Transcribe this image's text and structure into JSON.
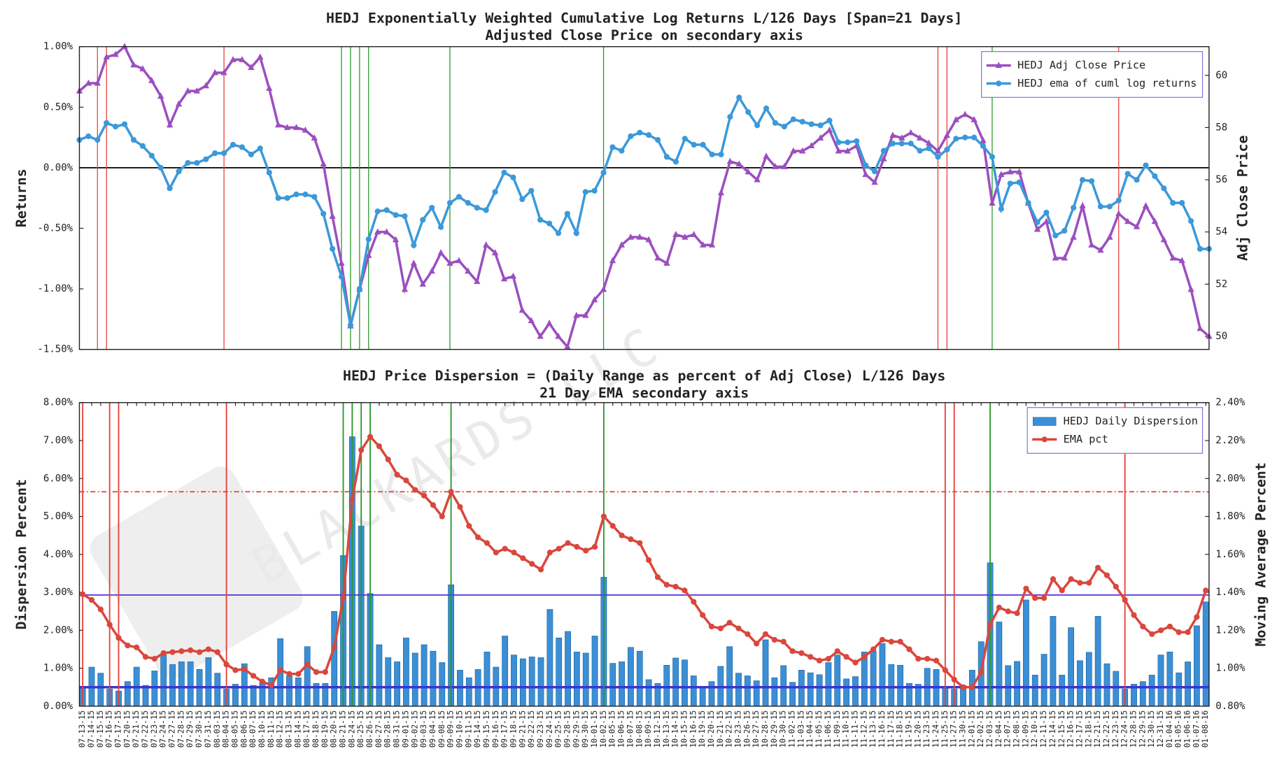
{
  "watermark": "BLACKARDS LLC",
  "chart_data": [
    {
      "type": "line",
      "title": "HEDJ Exponentially Weighted Cumulative Log Returns L/126 Days [Span=21 Days]",
      "subtitle": "Adjusted Close Price on secondary axis",
      "ylabel": "Returns",
      "y2label": "Adj Close Price",
      "ylim": [
        -1.5,
        1.0
      ],
      "yticks": [
        {
          "value": -1.5,
          "label": "-1.50%"
        },
        {
          "value": -1.0,
          "label": "-1.00%"
        },
        {
          "value": -0.5,
          "label": "-0.50%"
        },
        {
          "value": 0,
          "label": "0.00%"
        },
        {
          "value": 0.5,
          "label": "0.50%"
        },
        {
          "value": 1.0,
          "label": "1.00%"
        }
      ],
      "y2lim": [
        49.5,
        61.1
      ],
      "y2ticks": [
        50,
        52,
        54,
        56,
        58,
        60
      ],
      "legend": "upper right",
      "hlines": [
        {
          "value": 0,
          "color": "#000000"
        }
      ],
      "vlines": [
        {
          "color": "#e8413c",
          "dates": [
            "07-15-15",
            "07-16-15",
            "08-04-15",
            "11-24-15",
            "11-25-15",
            "12-23-15"
          ]
        },
        {
          "color": "#2a9a2a",
          "dates": [
            "08-21-15",
            "08-24-15",
            "08-25-15",
            "08-26-15",
            "09-09-15",
            "10-02-15",
            "12-03-15"
          ]
        }
      ],
      "series": [
        {
          "name": "HEDJ Adj Close Price",
          "color": "#9b4fbf",
          "marker": "triangle",
          "axis": "y2",
          "values": [
            59.4,
            59.7,
            59.7,
            60.7,
            60.8,
            61.1,
            60.4,
            60.25,
            59.8,
            59.2,
            58.1,
            58.9,
            59.4,
            59.4,
            59.6,
            60.1,
            60.1,
            60.6,
            60.6,
            60.3,
            60.7,
            59.5,
            58.1,
            58.0,
            58.0,
            57.9,
            57.6,
            56.6,
            54.6,
            52.8,
            50.4,
            51.8,
            53.1,
            54.0,
            54.0,
            53.7,
            51.8,
            52.8,
            52.0,
            52.5,
            53.2,
            52.8,
            52.9,
            52.5,
            52.1,
            53.5,
            53.2,
            52.2,
            52.3,
            51.0,
            50.6,
            50.0,
            50.5,
            50.0,
            49.6,
            50.8,
            50.8,
            51.4,
            51.8,
            52.9,
            53.5,
            53.8,
            53.8,
            53.7,
            53.0,
            52.8,
            53.9,
            53.8,
            53.9,
            53.5,
            53.5,
            55.5,
            56.7,
            56.6,
            56.3,
            56.0,
            56.9,
            56.5,
            56.5,
            57.1,
            57.1,
            57.3,
            57.6,
            57.9,
            57.1,
            57.1,
            57.3,
            56.2,
            55.9,
            56.8,
            57.7,
            57.6,
            57.8,
            57.6,
            57.4,
            57.1,
            57.7,
            58.3,
            58.5,
            58.3,
            57.5,
            55.1,
            56.2,
            56.3,
            56.3,
            55.1,
            54.1,
            54.4,
            53.0,
            53.0,
            53.8,
            55.0,
            53.5,
            53.3,
            53.8,
            54.7,
            54.4,
            54.2,
            55.0,
            54.4,
            53.7,
            53.0,
            52.9,
            51.8,
            50.3,
            50.0
          ]
        },
        {
          "name": "HEDJ ema of cuml log returns",
          "color": "#3b99d9",
          "marker": "circle",
          "values": [
            0.23,
            0.26,
            0.23,
            0.37,
            0.34,
            0.36,
            0.23,
            0.18,
            0.1,
            0.0,
            -0.17,
            -0.03,
            0.04,
            0.04,
            0.07,
            0.12,
            0.12,
            0.19,
            0.17,
            0.11,
            0.16,
            -0.04,
            -0.25,
            -0.25,
            -0.22,
            -0.22,
            -0.24,
            -0.38,
            -0.67,
            -0.9,
            -1.3,
            -1.0,
            -0.59,
            -0.36,
            -0.35,
            -0.39,
            -0.4,
            -0.64,
            -0.43,
            -0.33,
            -0.49,
            -0.29,
            -0.24,
            -0.29,
            -0.33,
            -0.35,
            -0.2,
            -0.04,
            -0.08,
            -0.26,
            -0.19,
            -0.43,
            -0.46,
            -0.54,
            -0.38,
            -0.54,
            -0.2,
            -0.19,
            -0.04,
            0.17,
            0.14,
            0.26,
            0.29,
            0.27,
            0.23,
            0.09,
            0.05,
            0.24,
            0.19,
            0.19,
            0.11,
            0.11,
            0.42,
            0.58,
            0.46,
            0.35,
            0.49,
            0.37,
            0.34,
            0.4,
            0.38,
            0.36,
            0.35,
            0.39,
            0.21,
            0.21,
            0.22,
            0.02,
            -0.03,
            0.14,
            0.2,
            0.2,
            0.2,
            0.14,
            0.16,
            0.09,
            0.15,
            0.24,
            0.25,
            0.25,
            0.18,
            0.09,
            -0.34,
            -0.13,
            -0.12,
            -0.29,
            -0.45,
            -0.37,
            -0.56,
            -0.52,
            -0.33,
            -0.1,
            -0.11,
            -0.32,
            -0.32,
            -0.27,
            -0.05,
            -0.1,
            0.02,
            -0.07,
            -0.17,
            -0.29,
            -0.29,
            -0.44,
            -0.67,
            -0.67
          ]
        }
      ]
    },
    {
      "type": "bar",
      "title": "HEDJ Price Dispersion = (Daily Range as percent of Adj Close) L/126 Days",
      "subtitle": "21 Day EMA secondary axis",
      "ylabel": "Dispersion Percent",
      "y2label": "Moving Average Percent",
      "categories": [
        "07-13-15",
        "07-14-15",
        "07-15-15",
        "07-16-15",
        "07-17-15",
        "07-20-15",
        "07-21-15",
        "07-22-15",
        "07-23-15",
        "07-24-15",
        "07-27-15",
        "07-28-15",
        "07-29-15",
        "07-30-15",
        "07-31-15",
        "08-03-15",
        "08-04-15",
        "08-05-15",
        "08-06-15",
        "08-07-15",
        "08-10-15",
        "08-11-15",
        "08-12-15",
        "08-13-15",
        "08-14-15",
        "08-17-15",
        "08-18-15",
        "08-19-15",
        "08-20-15",
        "08-21-15",
        "08-24-15",
        "08-25-15",
        "08-26-15",
        "08-27-15",
        "08-28-15",
        "08-31-15",
        "09-01-15",
        "09-02-15",
        "09-03-15",
        "09-04-15",
        "09-08-15",
        "09-09-15",
        "09-10-15",
        "09-11-15",
        "09-14-15",
        "09-15-15",
        "09-16-15",
        "09-17-15",
        "09-18-15",
        "09-21-15",
        "09-22-15",
        "09-23-15",
        "09-24-15",
        "09-25-15",
        "09-28-15",
        "09-29-15",
        "09-30-15",
        "10-01-15",
        "10-02-15",
        "10-05-15",
        "10-06-15",
        "10-07-15",
        "10-08-15",
        "10-09-15",
        "10-12-15",
        "10-13-15",
        "10-14-15",
        "10-15-15",
        "10-16-15",
        "10-19-15",
        "10-20-15",
        "10-21-15",
        "10-22-15",
        "10-23-15",
        "10-26-15",
        "10-27-15",
        "10-28-15",
        "10-29-15",
        "10-30-15",
        "11-02-15",
        "11-03-15",
        "11-04-15",
        "11-05-15",
        "11-06-15",
        "11-09-15",
        "11-10-15",
        "11-11-15",
        "11-12-15",
        "11-13-15",
        "11-16-15",
        "11-17-15",
        "11-18-15",
        "11-19-15",
        "11-20-15",
        "11-23-15",
        "11-24-15",
        "11-25-15",
        "11-27-15",
        "11-30-15",
        "12-01-15",
        "12-02-15",
        "12-03-15",
        "12-04-15",
        "12-07-15",
        "12-08-15",
        "12-09-15",
        "12-10-15",
        "12-11-15",
        "12-14-15",
        "12-15-15",
        "12-16-15",
        "12-17-15",
        "12-18-15",
        "12-21-15",
        "12-22-15",
        "12-23-15",
        "12-24-15",
        "12-28-15",
        "12-29-15",
        "12-30-15",
        "12-31-15",
        "01-04-16",
        "01-05-16",
        "01-06-16",
        "01-07-16",
        "01-08-16"
      ],
      "ylim": [
        0,
        8
      ],
      "yticks": [
        {
          "value": 0,
          "label": "0.00%"
        },
        {
          "value": 1,
          "label": "1.00%"
        },
        {
          "value": 2,
          "label": "2.00%"
        },
        {
          "value": 3,
          "label": "3.00%"
        },
        {
          "value": 4,
          "label": "4.00%"
        },
        {
          "value": 5,
          "label": "5.00%"
        },
        {
          "value": 6,
          "label": "6.00%"
        },
        {
          "value": 7,
          "label": "7.00%"
        },
        {
          "value": 8,
          "label": "8.00%"
        }
      ],
      "y2lim": [
        0.8,
        2.4
      ],
      "y2ticks": [
        {
          "value": 0.8,
          "label": "0.80%"
        },
        {
          "value": 1.0,
          "label": "1.00%"
        },
        {
          "value": 1.2,
          "label": "1.20%"
        },
        {
          "value": 1.4,
          "label": "1.40%"
        },
        {
          "value": 1.6,
          "label": "1.60%"
        },
        {
          "value": 1.8,
          "label": "1.80%"
        },
        {
          "value": 2.0,
          "label": "2.00%"
        },
        {
          "value": 2.2,
          "label": "2.20%"
        },
        {
          "value": 2.4,
          "label": "2.40%"
        }
      ],
      "legend": "upper right",
      "hlines": [
        {
          "value": 2.93,
          "color": "#5a2ed6"
        },
        {
          "value": 0.5,
          "color": "#3b35d0",
          "width": 3
        },
        {
          "value": 1.93,
          "axis": "y2",
          "color": "#e04040",
          "dash": "dashdot"
        }
      ],
      "vlines": [
        {
          "color": "#e8413c",
          "dates": [
            "07-13-15",
            "07-16-15",
            "07-17-15",
            "08-04-15",
            "11-25-15",
            "11-27-15",
            "12-24-15"
          ]
        },
        {
          "color": "#2a9a2a",
          "dates": [
            "08-21-15",
            "08-24-15",
            "08-25-15",
            "08-26-15",
            "09-09-15",
            "10-02-15",
            "12-03-15"
          ]
        }
      ],
      "series": [
        {
          "name": "HEDJ Daily Dispersion",
          "color": "#3a8fd6",
          "values": [
            0.5,
            1.03,
            0.87,
            0.45,
            0.4,
            0.65,
            1.03,
            0.55,
            0.93,
            1.35,
            1.1,
            1.17,
            1.17,
            0.97,
            1.28,
            0.87,
            0.45,
            0.58,
            1.12,
            0.55,
            0.62,
            0.75,
            1.78,
            0.8,
            0.75,
            1.57,
            0.6,
            0.6,
            2.5,
            3.97,
            7.1,
            4.75,
            2.97,
            1.62,
            1.28,
            1.17,
            1.8,
            1.4,
            1.62,
            1.45,
            1.15,
            3.2,
            0.95,
            0.75,
            0.97,
            1.43,
            1.03,
            1.85,
            1.35,
            1.25,
            1.3,
            1.28,
            2.55,
            1.8,
            1.97,
            1.43,
            1.4,
            1.85,
            3.4,
            1.13,
            1.17,
            1.55,
            1.45,
            0.7,
            0.6,
            1.08,
            1.27,
            1.22,
            0.8,
            0.5,
            0.65,
            1.05,
            1.57,
            0.87,
            0.8,
            0.67,
            1.75,
            0.75,
            1.07,
            0.63,
            0.95,
            0.88,
            0.83,
            1.15,
            1.35,
            0.72,
            0.78,
            1.43,
            1.45,
            1.65,
            1.1,
            1.08,
            0.6,
            0.58,
            1.0,
            0.97,
            0.5,
            0.45,
            0.55,
            0.95,
            1.7,
            3.78,
            2.22,
            1.07,
            1.18,
            2.8,
            0.82,
            1.37,
            2.37,
            0.82,
            2.07,
            1.2,
            1.42,
            2.37,
            1.12,
            0.92,
            0.45,
            0.58,
            0.65,
            0.82,
            1.35,
            1.43,
            0.88,
            1.17,
            2.12,
            2.75
          ]
        },
        {
          "name": "EMA pct",
          "type": "line",
          "axis": "y2",
          "color": "#d9473d",
          "marker": "circle",
          "values": [
            1.39,
            1.36,
            1.31,
            1.23,
            1.16,
            1.12,
            1.11,
            1.06,
            1.05,
            1.08,
            1.085,
            1.09,
            1.095,
            1.085,
            1.1,
            1.085,
            1.02,
            0.99,
            0.995,
            0.96,
            0.93,
            0.91,
            0.99,
            0.97,
            0.97,
            1.02,
            0.98,
            0.98,
            1.11,
            1.37,
            1.89,
            2.15,
            2.22,
            2.17,
            2.1,
            2.02,
            1.99,
            1.94,
            1.91,
            1.86,
            1.8,
            1.93,
            1.85,
            1.75,
            1.69,
            1.66,
            1.61,
            1.63,
            1.61,
            1.58,
            1.55,
            1.52,
            1.61,
            1.63,
            1.66,
            1.64,
            1.62,
            1.64,
            1.8,
            1.75,
            1.7,
            1.68,
            1.66,
            1.57,
            1.48,
            1.44,
            1.43,
            1.41,
            1.35,
            1.28,
            1.22,
            1.21,
            1.24,
            1.21,
            1.18,
            1.13,
            1.18,
            1.15,
            1.14,
            1.09,
            1.08,
            1.06,
            1.04,
            1.05,
            1.09,
            1.06,
            1.03,
            1.06,
            1.1,
            1.15,
            1.14,
            1.14,
            1.1,
            1.05,
            1.05,
            1.04,
            0.99,
            0.94,
            0.9,
            0.9,
            0.98,
            1.23,
            1.32,
            1.3,
            1.29,
            1.42,
            1.37,
            1.37,
            1.47,
            1.41,
            1.47,
            1.45,
            1.45,
            1.53,
            1.49,
            1.43,
            1.36,
            1.28,
            1.22,
            1.18,
            1.2,
            1.22,
            1.19,
            1.19,
            1.27,
            1.41
          ]
        }
      ]
    }
  ]
}
